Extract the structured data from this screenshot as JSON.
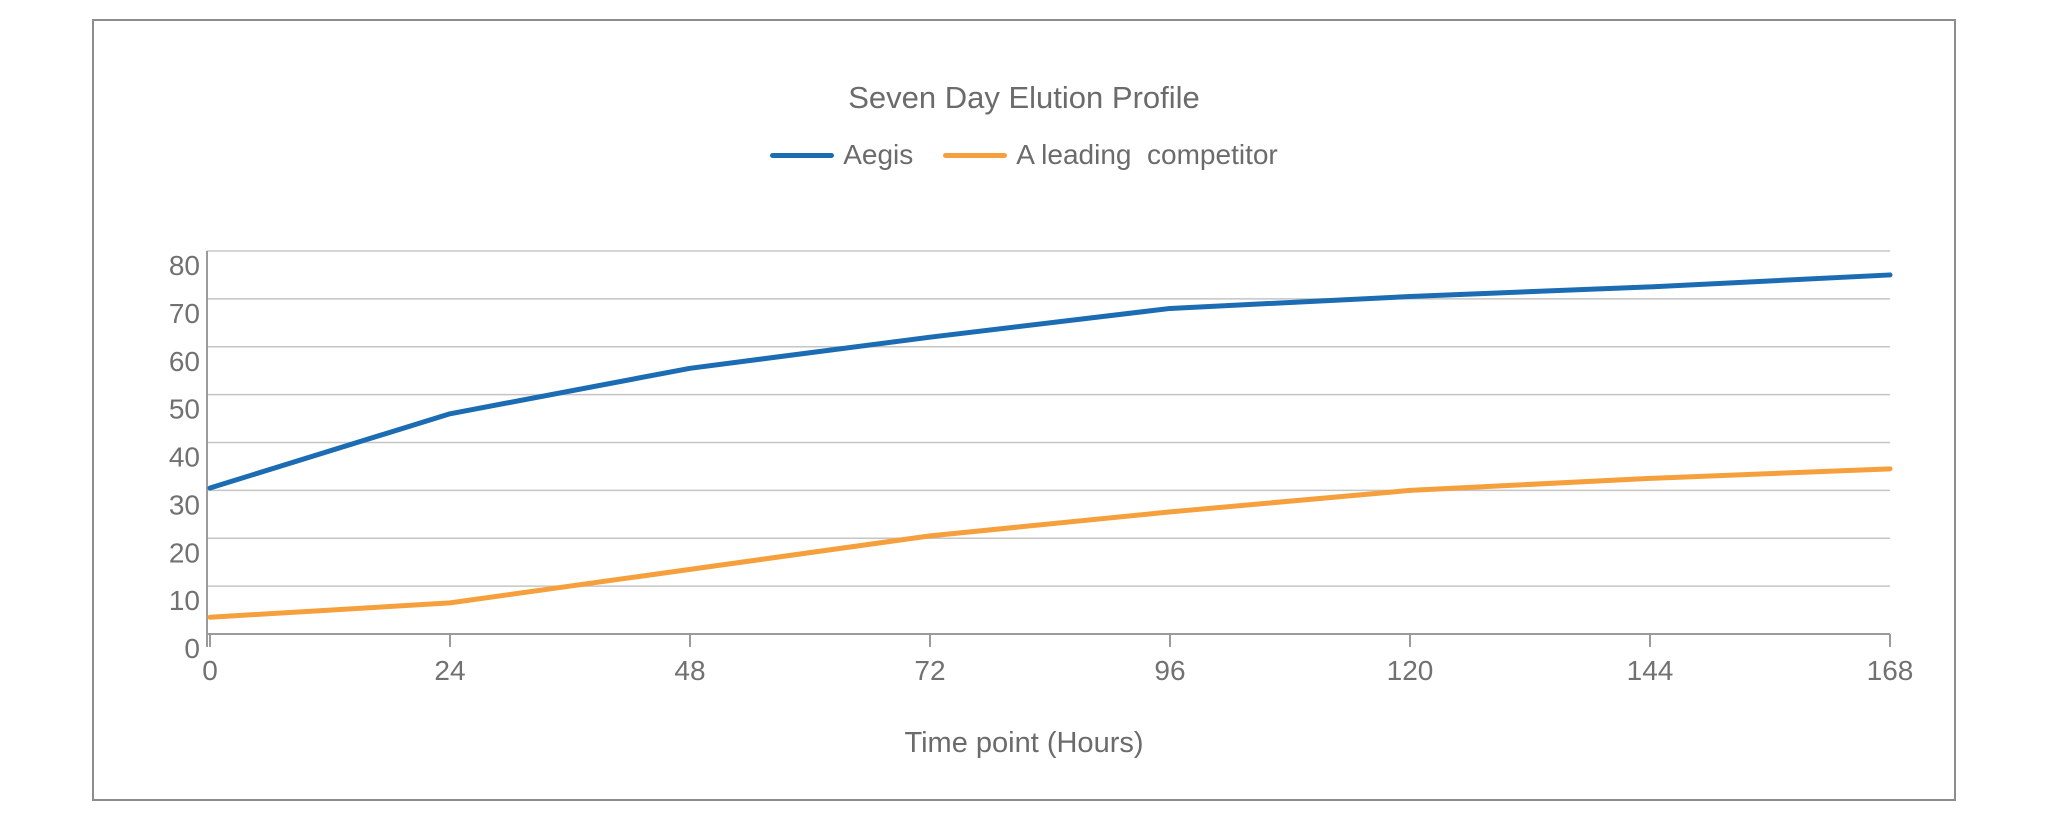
{
  "colors": {
    "aegis_line": "#1b6cb3",
    "competitor_line": "#f5a03c",
    "grid": "#c5c5c5",
    "axis": "#9b9b9b",
    "text": "#6b6b6b",
    "frame_border": "#8d8d8d",
    "background": "#ffffff"
  },
  "chart_data": {
    "type": "line",
    "title": "Seven Day Elution Profile",
    "xlabel": "Time point (Hours)",
    "ylabel": "",
    "x": [
      0,
      24,
      48,
      72,
      96,
      120,
      144,
      168
    ],
    "xticks": [
      0,
      24,
      48,
      72,
      96,
      120,
      144,
      168
    ],
    "yticks": [
      0,
      10,
      20,
      30,
      40,
      50,
      60,
      70,
      80
    ],
    "xlim": [
      0,
      168
    ],
    "ylim": [
      0,
      80
    ],
    "grid": "horizontal",
    "legend_position": "top-center",
    "series": [
      {
        "name": "Aegis",
        "color": "#1b6cb3",
        "values": [
          30.5,
          46,
          55.5,
          62,
          68,
          70.5,
          72.5,
          75
        ]
      },
      {
        "name": "A leading  competitor",
        "color": "#f5a03c",
        "values": [
          3.5,
          6.5,
          13.5,
          20.5,
          25.5,
          30,
          32.5,
          34.5
        ]
      }
    ]
  }
}
